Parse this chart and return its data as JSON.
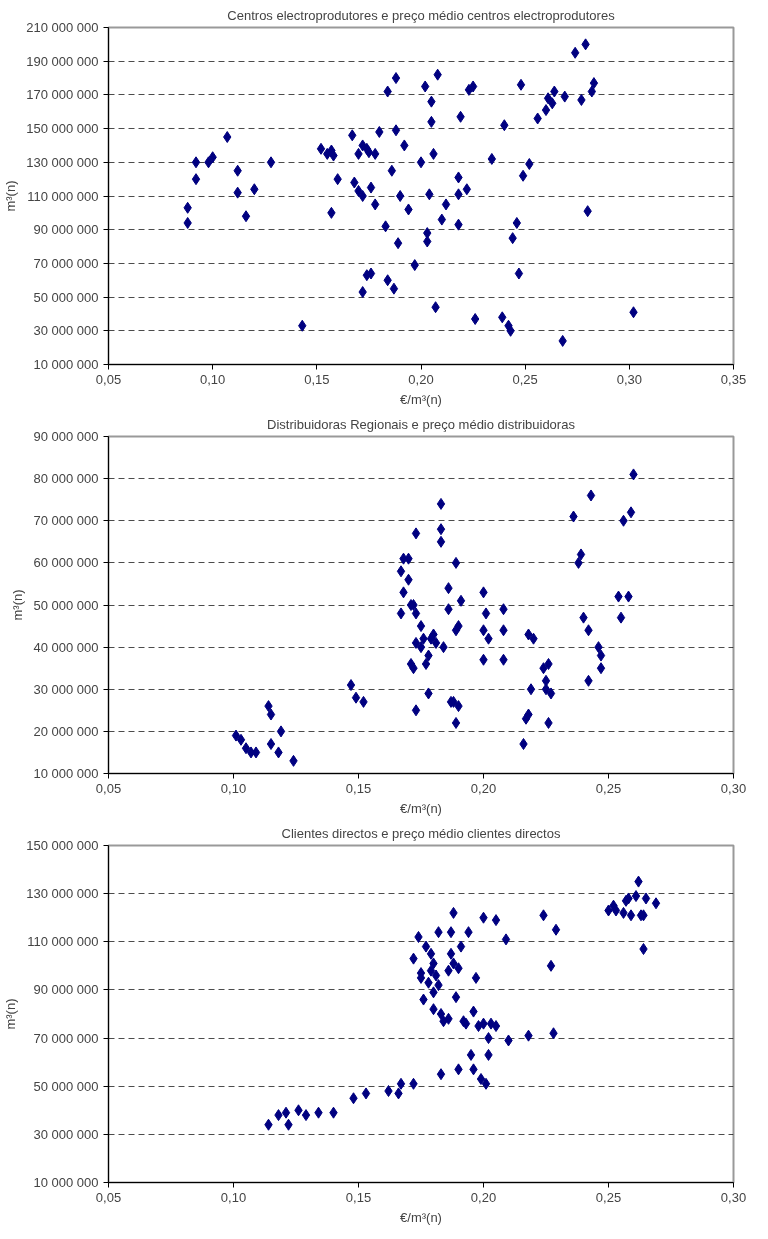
{
  "chart_data": [
    {
      "type": "scatter",
      "title": "Centros electroprodutores e preço médio centros electroprodutores",
      "xlabel": "€/m³(n)",
      "ylabel": "m³(n)",
      "marker": "diamond",
      "grid": "y",
      "color": "#000080",
      "xlim": [
        0.05,
        0.35
      ],
      "xticks": [
        {
          "value": 0.05,
          "label": "0,05"
        },
        {
          "value": 0.1,
          "label": "0,10"
        },
        {
          "value": 0.15,
          "label": "0,15"
        },
        {
          "value": 0.2,
          "label": "0,20"
        },
        {
          "value": 0.25,
          "label": "0,25"
        },
        {
          "value": 0.3,
          "label": "0,30"
        },
        {
          "value": 0.35,
          "label": "0,35"
        }
      ],
      "ylim": [
        10000000,
        210000000
      ],
      "yticks": [
        {
          "value": 10000000,
          "label": "10 000 000"
        },
        {
          "value": 30000000,
          "label": "30 000 000"
        },
        {
          "value": 50000000,
          "label": "50 000 000"
        },
        {
          "value": 70000000,
          "label": "70 000 000"
        },
        {
          "value": 90000000,
          "label": "90 000 000"
        },
        {
          "value": 110000000,
          "label": "110 000 000"
        },
        {
          "value": 130000000,
          "label": "130 000 000"
        },
        {
          "value": 150000000,
          "label": "150 000 000"
        },
        {
          "value": 170000000,
          "label": "170 000 000"
        },
        {
          "value": 190000000,
          "label": "190 000 000"
        },
        {
          "value": 210000000,
          "label": "210 000 000"
        }
      ],
      "x": [
        0.088,
        0.088,
        0.092,
        0.092,
        0.098,
        0.1,
        0.107,
        0.112,
        0.112,
        0.116,
        0.12,
        0.128,
        0.143,
        0.152,
        0.155,
        0.157,
        0.158,
        0.157,
        0.16,
        0.167,
        0.168,
        0.17,
        0.17,
        0.172,
        0.172,
        0.174,
        0.175,
        0.172,
        0.174,
        0.176,
        0.176,
        0.178,
        0.178,
        0.18,
        0.184,
        0.183,
        0.184,
        0.186,
        0.187,
        0.188,
        0.188,
        0.189,
        0.19,
        0.192,
        0.194,
        0.197,
        0.2,
        0.202,
        0.203,
        0.203,
        0.204,
        0.205,
        0.205,
        0.206,
        0.207,
        0.208,
        0.21,
        0.212,
        0.218,
        0.218,
        0.218,
        0.219,
        0.222,
        0.223,
        0.225,
        0.226,
        0.234,
        0.239,
        0.24,
        0.242,
        0.243,
        0.244,
        0.246,
        0.247,
        0.248,
        0.249,
        0.252,
        0.256,
        0.26,
        0.261,
        0.263,
        0.264,
        0.268,
        0.269,
        0.274,
        0.277,
        0.279,
        0.28,
        0.282,
        0.283,
        0.302
      ],
      "values": [
        103000000.0,
        94000000.0,
        130000000.0,
        120000000.0,
        130000000.0,
        133000000.0,
        145000000.0,
        125000000.0,
        112000000.0,
        98000000.0,
        114000000.0,
        130000000.0,
        33000000.0,
        138000000.0,
        135000000.0,
        137000000.0,
        134000000.0,
        100000000.0,
        120000000.0,
        146000000.0,
        118000000.0,
        113000000.0,
        135000000.0,
        140000000.0,
        110000000.0,
        138000000.0,
        136000000.0,
        53000000.0,
        63000000.0,
        64000000.0,
        115000000.0,
        105000000.0,
        135000000.0,
        148000000.0,
        60000000.0,
        92000000.0,
        172000000.0,
        125000000.0,
        55000000.0,
        180000000.0,
        149000000.0,
        82000000.0,
        110000000.0,
        140000000.0,
        102000000.0,
        69000000.0,
        130000000.0,
        175000000.0,
        88000000.0,
        83000000.0,
        111000000.0,
        154000000.0,
        166000000.0,
        135000000.0,
        44000000.0,
        182000000.0,
        96000000.0,
        105000000.0,
        111000000.0,
        121000000.0,
        93000000.0,
        157000000.0,
        114000000.0,
        173000000.0,
        175000000.0,
        37000000.0,
        132000000.0,
        38000000.0,
        152000000.0,
        33000000.0,
        30000000.0,
        85000000.0,
        94000000.0,
        64000000.0,
        176000000.0,
        122000000.0,
        129000000.0,
        156000000.0,
        161000000.0,
        168000000.0,
        165000000.0,
        172000000.0,
        24000000.0,
        169000000.0,
        195000000.0,
        167000000.0,
        200000000.0,
        101000000.0,
        172000000.0,
        177000000.0,
        41000000.0
      ]
    },
    {
      "type": "scatter",
      "title": "Distribuidoras Regionais e preço médio distribuidoras",
      "xlabel": "€/m³(n)",
      "ylabel": "m³(n)",
      "marker": "diamond",
      "grid": "y",
      "color": "#000080",
      "xlim": [
        0.05,
        0.3
      ],
      "xticks": [
        {
          "value": 0.05,
          "label": "0,05"
        },
        {
          "value": 0.1,
          "label": "0,10"
        },
        {
          "value": 0.15,
          "label": "0,15"
        },
        {
          "value": 0.2,
          "label": "0,20"
        },
        {
          "value": 0.25,
          "label": "0,25"
        },
        {
          "value": 0.3,
          "label": "0,30"
        }
      ],
      "ylim": [
        10000000,
        90000000
      ],
      "yticks": [
        {
          "value": 10000000,
          "label": "10 000 000"
        },
        {
          "value": 20000000,
          "label": "20 000 000"
        },
        {
          "value": 30000000,
          "label": "30 000 000"
        },
        {
          "value": 40000000,
          "label": "40 000 000"
        },
        {
          "value": 50000000,
          "label": "50 000 000"
        },
        {
          "value": 60000000,
          "label": "60 000 000"
        },
        {
          "value": 70000000,
          "label": "70 000 000"
        },
        {
          "value": 80000000,
          "label": "80 000 000"
        },
        {
          "value": 90000000,
          "label": "90 000 000"
        }
      ],
      "x": [
        0.101,
        0.103,
        0.105,
        0.107,
        0.109,
        0.114,
        0.115,
        0.115,
        0.118,
        0.119,
        0.124,
        0.147,
        0.149,
        0.152,
        0.167,
        0.167,
        0.168,
        0.168,
        0.17,
        0.17,
        0.171,
        0.171,
        0.172,
        0.172,
        0.173,
        0.173,
        0.173,
        0.173,
        0.175,
        0.175,
        0.176,
        0.177,
        0.178,
        0.178,
        0.179,
        0.18,
        0.181,
        0.183,
        0.183,
        0.183,
        0.184,
        0.186,
        0.186,
        0.187,
        0.188,
        0.189,
        0.189,
        0.189,
        0.19,
        0.19,
        0.191,
        0.2,
        0.2,
        0.2,
        0.201,
        0.202,
        0.208,
        0.208,
        0.208,
        0.216,
        0.217,
        0.218,
        0.218,
        0.219,
        0.22,
        0.224,
        0.225,
        0.225,
        0.226,
        0.226,
        0.227,
        0.236,
        0.238,
        0.239,
        0.24,
        0.242,
        0.242,
        0.243,
        0.246,
        0.247,
        0.247,
        0.254,
        0.255,
        0.256,
        0.258,
        0.259,
        0.26
      ],
      "values": [
        19000000.0,
        18000000.0,
        16000000.0,
        15000000.0,
        15000000.0,
        26000000.0,
        24000000.0,
        17000000.0,
        15000000.0,
        20000000.0,
        13000000.0,
        31000000.0,
        28000000.0,
        27000000.0,
        48000000.0,
        58000000.0,
        53000000.0,
        61000000.0,
        56000000.0,
        61000000.0,
        50000000.0,
        36000000.0,
        35000000.0,
        50000000.0,
        67000000.0,
        48000000.0,
        41000000.0,
        25000000.0,
        40000000.0,
        45000000.0,
        42000000.0,
        36000000.0,
        38000000.0,
        29000000.0,
        42000000.0,
        43000000.0,
        41000000.0,
        74000000.0,
        68000000.0,
        65000000.0,
        40000000.0,
        54000000.0,
        49000000.0,
        27000000.0,
        27000000.0,
        60000000.0,
        44000000.0,
        22000000.0,
        26000000.0,
        45000000.0,
        51000000.0,
        53000000.0,
        44000000.0,
        37000000.0,
        48000000.0,
        42000000.0,
        49000000.0,
        44000000.0,
        37000000.0,
        17000000.0,
        23000000.0,
        24000000.0,
        43000000.0,
        30000000.0,
        42000000.0,
        35000000.0,
        32000000.0,
        30000000.0,
        36000000.0,
        22000000.0,
        29000000.0,
        71000000.0,
        60000000.0,
        62000000.0,
        47000000.0,
        44000000.0,
        32000000.0,
        76000000.0,
        40000000.0,
        38000000.0,
        35000000.0,
        52000000.0,
        47000000.0,
        70000000.0,
        52000000.0,
        72000000.0,
        81000000.0
      ]
    },
    {
      "type": "scatter",
      "title": "Clientes directos e preço médio clientes directos",
      "xlabel": "€/m³(n)",
      "ylabel": "m³(n)",
      "marker": "diamond",
      "grid": "y",
      "color": "#000080",
      "xlim": [
        0.05,
        0.3
      ],
      "xticks": [
        {
          "value": 0.05,
          "label": "0,05"
        },
        {
          "value": 0.1,
          "label": "0,10"
        },
        {
          "value": 0.15,
          "label": "0,15"
        },
        {
          "value": 0.2,
          "label": "0,20"
        },
        {
          "value": 0.25,
          "label": "0,25"
        },
        {
          "value": 0.3,
          "label": "0,30"
        }
      ],
      "ylim": [
        10000000,
        150000000
      ],
      "yticks": [
        {
          "value": 10000000,
          "label": "10 000 000"
        },
        {
          "value": 30000000,
          "label": "30 000 000"
        },
        {
          "value": 50000000,
          "label": "50 000 000"
        },
        {
          "value": 70000000,
          "label": "70 000 000"
        },
        {
          "value": 90000000,
          "label": "90 000 000"
        },
        {
          "value": 110000000,
          "label": "110 000 000"
        },
        {
          "value": 130000000,
          "label": "130 000 000"
        },
        {
          "value": 150000000,
          "label": "150 000 000"
        }
      ],
      "x": [
        0.114,
        0.118,
        0.121,
        0.122,
        0.126,
        0.129,
        0.134,
        0.14,
        0.148,
        0.153,
        0.162,
        0.166,
        0.167,
        0.172,
        0.172,
        0.174,
        0.175,
        0.175,
        0.176,
        0.177,
        0.178,
        0.179,
        0.179,
        0.18,
        0.18,
        0.18,
        0.181,
        0.182,
        0.182,
        0.183,
        0.183,
        0.184,
        0.186,
        0.186,
        0.187,
        0.187,
        0.188,
        0.188,
        0.189,
        0.19,
        0.19,
        0.191,
        0.192,
        0.193,
        0.194,
        0.195,
        0.196,
        0.196,
        0.197,
        0.198,
        0.199,
        0.2,
        0.2,
        0.201,
        0.202,
        0.202,
        0.203,
        0.205,
        0.205,
        0.209,
        0.21,
        0.218,
        0.224,
        0.227,
        0.229,
        0.228,
        0.25,
        0.252,
        0.253,
        0.256,
        0.257,
        0.258,
        0.259,
        0.261,
        0.262,
        0.263,
        0.264,
        0.264,
        0.265,
        0.269
      ],
      "values": [
        34000000.0,
        38000000.0,
        39000000.0,
        34000000.0,
        40000000.0,
        38000000.0,
        39000000.0,
        39000000.0,
        45000000.0,
        47000000.0,
        48000000.0,
        47000000.0,
        51000000.0,
        51000000.0,
        103000000.0,
        112000000.0,
        97000000.0,
        95000000.0,
        86000000.0,
        108000000.0,
        93000000.0,
        98000000.0,
        105000000.0,
        101000000.0,
        82000000.0,
        89000000.0,
        96000000.0,
        92000000.0,
        114000000.0,
        80000000.0,
        55000000.0,
        77000000.0,
        78000000.0,
        98000000.0,
        105000000.0,
        114000000.0,
        101000000.0,
        122000000.0,
        87000000.0,
        57000000.0,
        99000000.0,
        108000000.0,
        77000000.0,
        76000000.0,
        114000000.0,
        63000000.0,
        81000000.0,
        57000000.0,
        95000000.0,
        75000000.0,
        53000000.0,
        76000000.0,
        120000000.0,
        51000000.0,
        70000000.0,
        63000000.0,
        76000000.0,
        119000000.0,
        75000000.0,
        111000000.0,
        69000000.0,
        71000000.0,
        121000000.0,
        100000000.0,
        115000000.0,
        72000000.0,
        123000000.0,
        125000000.0,
        123000000.0,
        122000000.0,
        127000000.0,
        128000000.0,
        121000000.0,
        129000000.0,
        135000000.0,
        121000000.0,
        107000000.0,
        121000000.0,
        128000000.0,
        126000000.0
      ]
    }
  ]
}
